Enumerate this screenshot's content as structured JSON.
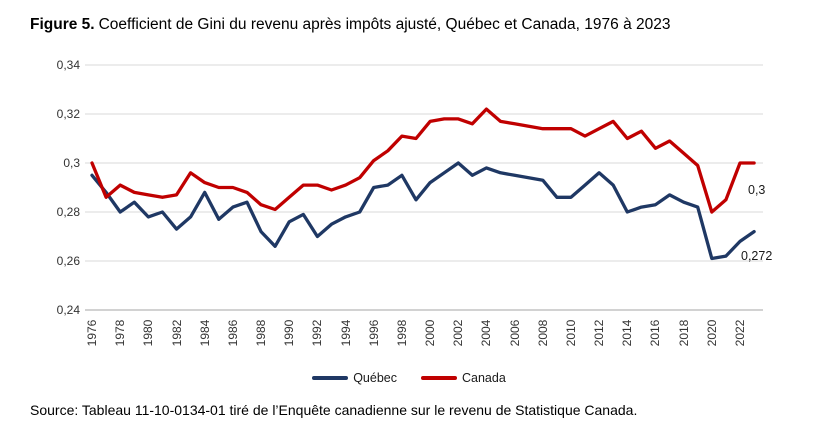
{
  "title": {
    "prefix": "Figure 5.",
    "text": "Coefficient de Gini du revenu après impôts ajusté, Québec et Canada, 1976 à 2023"
  },
  "source": "Source: Tableau 11-10-0134-01 tiré de l’Enquête canadienne sur le revenu de Statistique Canada.",
  "colors": {
    "quebec": "#1F3864",
    "canada": "#C00000",
    "gridline": "#D9D9D9",
    "axis": "#A6A6A6",
    "tick_text": "#333333"
  },
  "legend": {
    "quebec": {
      "label": "Québec"
    },
    "canada": {
      "label": "Canada"
    }
  },
  "end_labels": {
    "canada": "0,3",
    "quebec": "0,272"
  },
  "chart_data": {
    "type": "line",
    "title": "Figure 5. Coefficient de Gini du revenu après impôts ajusté, Québec et Canada, 1976 à 2023",
    "xlabel": "",
    "ylabel": "",
    "grid": true,
    "legend_position": "bottom",
    "ylim": [
      0.24,
      0.34
    ],
    "x": [
      1976,
      1977,
      1978,
      1979,
      1980,
      1981,
      1982,
      1983,
      1984,
      1985,
      1986,
      1987,
      1988,
      1989,
      1990,
      1991,
      1992,
      1993,
      1994,
      1995,
      1996,
      1997,
      1998,
      1999,
      2000,
      2001,
      2002,
      2003,
      2004,
      2005,
      2006,
      2007,
      2008,
      2009,
      2010,
      2011,
      2012,
      2013,
      2014,
      2015,
      2016,
      2017,
      2018,
      2019,
      2020,
      2021,
      2022,
      2023
    ],
    "series": [
      {
        "name": "Québec",
        "color": "#1F3864",
        "values": [
          0.295,
          0.288,
          0.28,
          0.284,
          0.278,
          0.28,
          0.273,
          0.278,
          0.288,
          0.277,
          0.282,
          0.284,
          0.272,
          0.266,
          0.276,
          0.279,
          0.27,
          0.275,
          0.278,
          0.28,
          0.29,
          0.291,
          0.295,
          0.285,
          0.292,
          0.296,
          0.3,
          0.295,
          0.298,
          0.296,
          0.295,
          0.294,
          0.293,
          0.286,
          0.286,
          0.291,
          0.296,
          0.291,
          0.28,
          0.282,
          0.283,
          0.287,
          0.284,
          0.282,
          0.261,
          0.262,
          0.268,
          0.272
        ]
      },
      {
        "name": "Canada",
        "color": "#C00000",
        "values": [
          0.3,
          0.286,
          0.291,
          0.288,
          0.287,
          0.286,
          0.287,
          0.296,
          0.292,
          0.29,
          0.29,
          0.288,
          0.283,
          0.281,
          0.286,
          0.291,
          0.291,
          0.289,
          0.291,
          0.294,
          0.301,
          0.305,
          0.311,
          0.31,
          0.317,
          0.318,
          0.318,
          0.316,
          0.322,
          0.317,
          0.316,
          0.315,
          0.314,
          0.314,
          0.314,
          0.311,
          0.314,
          0.317,
          0.31,
          0.313,
          0.306,
          0.309,
          0.304,
          0.299,
          0.28,
          0.285,
          0.3,
          0.3
        ]
      }
    ],
    "yticks": [
      {
        "label": "0,34",
        "value": 0.34
      },
      {
        "label": "0,32",
        "value": 0.32
      },
      {
        "label": "0,3",
        "value": 0.3
      },
      {
        "label": "0,28",
        "value": 0.28
      },
      {
        "label": "0,26",
        "value": 0.26
      },
      {
        "label": "0,24",
        "value": 0.24
      }
    ],
    "xticks": [
      1976,
      1978,
      1980,
      1982,
      1984,
      1986,
      1988,
      1990,
      1992,
      1994,
      1996,
      1998,
      2000,
      2002,
      2004,
      2006,
      2008,
      2010,
      2012,
      2014,
      2016,
      2018,
      2020,
      2022
    ]
  }
}
